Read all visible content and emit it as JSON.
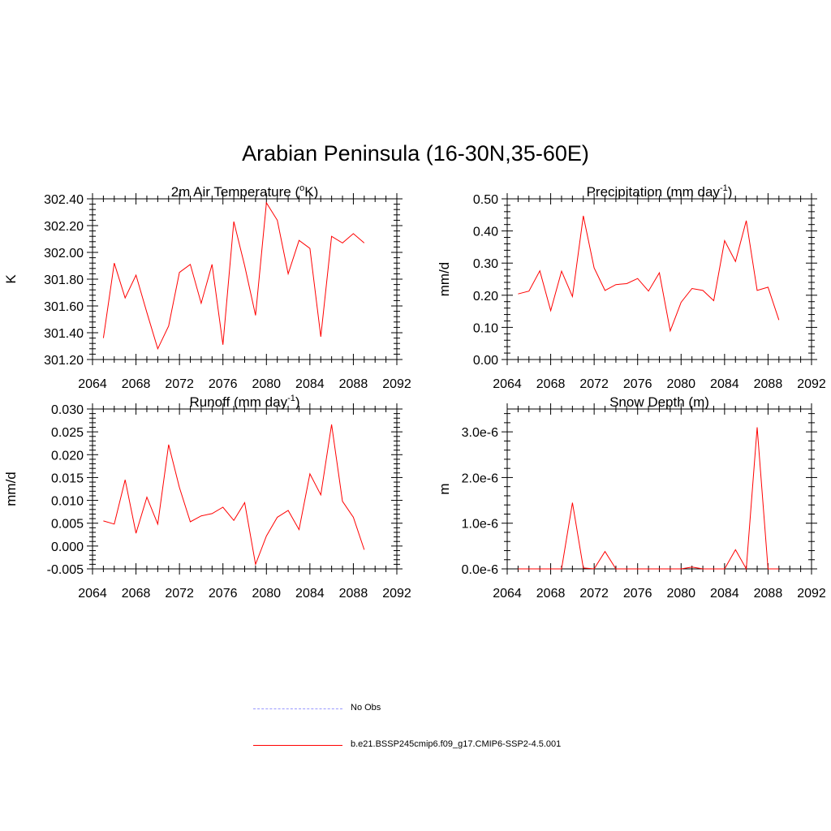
{
  "title": "Arabian Peninsula (16-30N,35-60E)",
  "colors": {
    "model": "#ff0000",
    "obs": "#9999ff",
    "axis": "#000000"
  },
  "legend": [
    {
      "label": "No Obs",
      "style": "dashed",
      "color": "#9999ff"
    },
    {
      "label": "b.e21.BSSP245cmip6.f09_g17.CMIP6-SSP2-4.5.001",
      "style": "solid",
      "color": "#ff0000"
    }
  ],
  "chart_data": [
    {
      "type": "line",
      "title": "2m Air Temperature (",
      "title_sup": "o",
      "title_tail": "K)",
      "ylabel": "K",
      "xlim": [
        2064,
        2092
      ],
      "ylim": [
        301.2,
        302.4
      ],
      "yticks": [
        "301.20",
        "301.40",
        "301.60",
        "301.80",
        "302.00",
        "302.20",
        "302.40"
      ],
      "ytick_values": [
        301.2,
        301.4,
        301.6,
        301.8,
        302.0,
        302.2,
        302.4
      ],
      "xticks": [
        "2064",
        "2068",
        "2072",
        "2076",
        "2080",
        "2084",
        "2088",
        "2092"
      ],
      "x": [
        2065,
        2066,
        2067,
        2068,
        2069,
        2070,
        2071,
        2072,
        2073,
        2074,
        2075,
        2076,
        2077,
        2078,
        2079,
        2080,
        2081,
        2082,
        2083,
        2084,
        2085,
        2086,
        2087,
        2088,
        2089
      ],
      "series": [
        {
          "values": [
            301.36,
            301.92,
            301.66,
            301.83,
            301.55,
            301.28,
            301.45,
            301.85,
            301.91,
            301.62,
            301.91,
            301.31,
            302.23,
            301.9,
            301.53,
            302.37,
            302.24,
            301.84,
            302.09,
            302.03,
            301.37,
            302.12,
            302.07,
            302.14,
            302.07
          ]
        }
      ]
    },
    {
      "type": "line",
      "title": "Precipitation (mm day",
      "title_sup": "-1",
      "title_tail": ")",
      "ylabel": "mm/d",
      "xlim": [
        2064,
        2092
      ],
      "ylim": [
        0.0,
        0.5
      ],
      "yticks": [
        "0.00",
        "0.10",
        "0.20",
        "0.30",
        "0.40",
        "0.50"
      ],
      "ytick_values": [
        0.0,
        0.1,
        0.2,
        0.3,
        0.4,
        0.5
      ],
      "xticks": [
        "2064",
        "2068",
        "2072",
        "2076",
        "2080",
        "2084",
        "2088",
        "2092"
      ],
      "x": [
        2065,
        2066,
        2067,
        2068,
        2069,
        2070,
        2071,
        2072,
        2073,
        2074,
        2075,
        2076,
        2077,
        2078,
        2079,
        2080,
        2081,
        2082,
        2083,
        2084,
        2085,
        2086,
        2087,
        2088,
        2089
      ],
      "series": [
        {
          "values": [
            0.204,
            0.213,
            0.276,
            0.152,
            0.275,
            0.196,
            0.447,
            0.285,
            0.215,
            0.233,
            0.236,
            0.252,
            0.213,
            0.27,
            0.089,
            0.178,
            0.221,
            0.215,
            0.183,
            0.37,
            0.305,
            0.432,
            0.215,
            0.225,
            0.123
          ]
        }
      ]
    },
    {
      "type": "line",
      "title": "Runoff (mm day",
      "title_sup": "-1",
      "title_tail": ")",
      "ylabel": "mm/d",
      "xlim": [
        2064,
        2092
      ],
      "ylim": [
        -0.005,
        0.03
      ],
      "yticks": [
        "-0.005",
        "0.000",
        "0.005",
        "0.010",
        "0.015",
        "0.020",
        "0.025",
        "0.030"
      ],
      "ytick_values": [
        -0.005,
        0.0,
        0.005,
        0.01,
        0.015,
        0.02,
        0.025,
        0.03
      ],
      "xticks": [
        "2064",
        "2068",
        "2072",
        "2076",
        "2080",
        "2084",
        "2088",
        "2092"
      ],
      "x": [
        2065,
        2066,
        2067,
        2068,
        2069,
        2070,
        2071,
        2072,
        2073,
        2074,
        2075,
        2076,
        2077,
        2078,
        2079,
        2080,
        2081,
        2082,
        2083,
        2084,
        2085,
        2086,
        2087,
        2088,
        2089
      ],
      "series": [
        {
          "values": [
            0.0055,
            0.0048,
            0.0145,
            0.0028,
            0.0107,
            0.0048,
            0.0222,
            0.0128,
            0.0053,
            0.0066,
            0.0071,
            0.0085,
            0.0056,
            0.0095,
            -0.004,
            0.0022,
            0.0063,
            0.0078,
            0.0036,
            0.0158,
            0.0112,
            0.0266,
            0.0098,
            0.0063,
            -0.0008
          ]
        }
      ]
    },
    {
      "type": "line",
      "title": "Snow Depth (m)",
      "title_sup": "",
      "title_tail": "",
      "ylabel": "m",
      "xlim": [
        2064,
        2092
      ],
      "ylim": [
        0.0,
        3.5e-06
      ],
      "yticks": [
        "0.0e-6",
        "1.0e-6",
        "2.0e-6",
        "3.0e-6"
      ],
      "ytick_values": [
        0.0,
        1e-06,
        2e-06,
        3e-06
      ],
      "xticks": [
        "2064",
        "2068",
        "2072",
        "2076",
        "2080",
        "2084",
        "2088",
        "2092"
      ],
      "x": [
        2065,
        2066,
        2067,
        2068,
        2069,
        2070,
        2071,
        2072,
        2073,
        2074,
        2075,
        2076,
        2077,
        2078,
        2079,
        2080,
        2081,
        2082,
        2083,
        2084,
        2085,
        2086,
        2087,
        2088,
        2089
      ],
      "series": [
        {
          "values": [
            0,
            0,
            0,
            0,
            0,
            1.45e-06,
            2e-08,
            0,
            3.8e-07,
            0,
            0,
            0,
            0,
            0,
            0,
            0,
            4e-08,
            0,
            0,
            0,
            4.2e-07,
            0,
            3.1e-06,
            0,
            0
          ]
        }
      ]
    }
  ]
}
